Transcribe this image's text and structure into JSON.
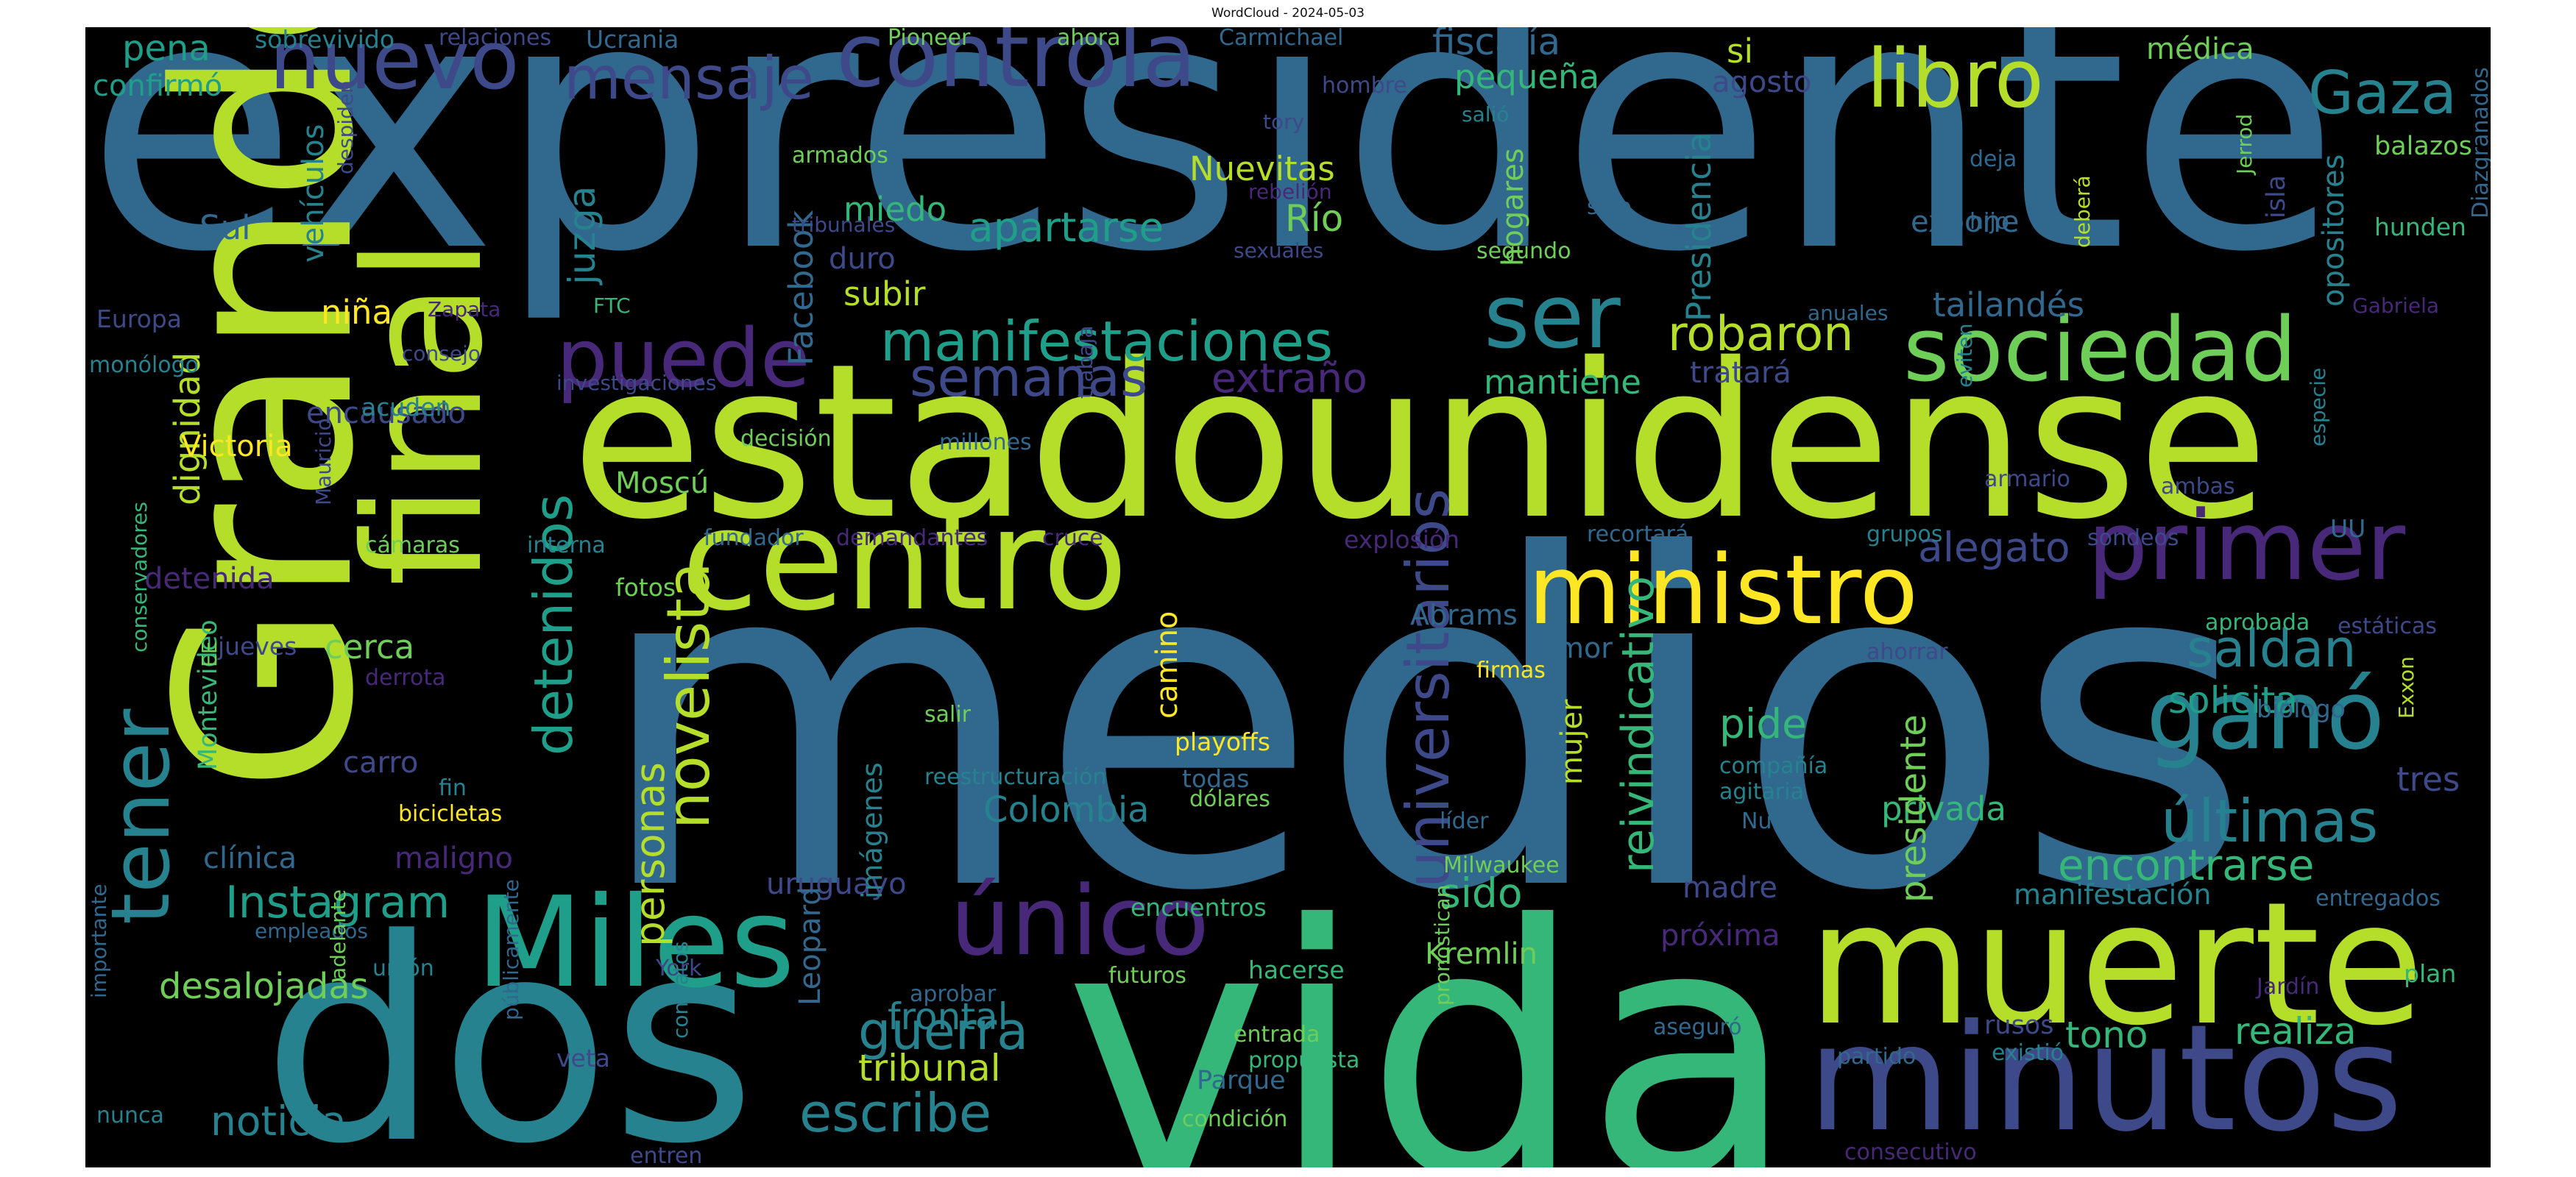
{
  "title": "WordCloud - 2024-05-03",
  "colors": {
    "background": "#000000",
    "palette": [
      "#fde725",
      "#b5de2b",
      "#6ece58",
      "#35b779",
      "#1f9e89",
      "#26828e",
      "#31688e",
      "#3e4989",
      "#482878",
      "#440154"
    ]
  },
  "words": [
    {
      "text": "expresidente",
      "color": "#31688e"
    },
    {
      "text": "medios",
      "color": "#31688e"
    },
    {
      "text": "estadounidense",
      "color": "#b5de2b"
    },
    {
      "text": "vida",
      "color": "#35b779"
    },
    {
      "text": "Grande",
      "color": "#b5de2b"
    },
    {
      "text": "dos",
      "color": "#26828e"
    },
    {
      "text": "final",
      "color": "#b5de2b"
    },
    {
      "text": "centro",
      "color": "#b5de2b"
    },
    {
      "text": "muerte",
      "color": "#b5de2b"
    },
    {
      "text": "minutos",
      "color": "#3e4989"
    },
    {
      "text": "ministro",
      "color": "#fde725"
    },
    {
      "text": "controla",
      "color": "#3e4989"
    },
    {
      "text": "nuevo",
      "color": "#3e4989"
    },
    {
      "text": "libro",
      "color": "#b5de2b"
    },
    {
      "text": "sociedad",
      "color": "#6ece58"
    },
    {
      "text": "primer",
      "color": "#482878"
    },
    {
      "text": "Miles",
      "color": "#1f9e89"
    },
    {
      "text": "único",
      "color": "#482878"
    },
    {
      "text": "ganó",
      "color": "#26828e"
    },
    {
      "text": "tener",
      "color": "#26828e"
    },
    {
      "text": "puede",
      "color": "#482878"
    },
    {
      "text": "ser",
      "color": "#26828e"
    },
    {
      "text": "mensaje",
      "color": "#3e4989"
    },
    {
      "text": "manifestaciones",
      "color": "#1f9e89"
    },
    {
      "text": "Gaza",
      "color": "#26828e"
    },
    {
      "text": "últimas",
      "color": "#26828e"
    },
    {
      "text": "universitarios",
      "color": "#3e4989"
    },
    {
      "text": "novelista",
      "color": "#b5de2b"
    },
    {
      "text": "detenidos",
      "color": "#1f9e89"
    },
    {
      "text": "saldan",
      "color": "#26828e"
    },
    {
      "text": "reivindicativo",
      "color": "#35b779"
    },
    {
      "text": "escribe",
      "color": "#26828e"
    },
    {
      "text": "Instagram",
      "color": "#1f9e89"
    },
    {
      "text": "guerra",
      "color": "#26828e"
    },
    {
      "text": "personas",
      "color": "#b5de2b"
    },
    {
      "text": "semanas",
      "color": "#3e4989"
    },
    {
      "text": "encontrarse",
      "color": "#35b779"
    },
    {
      "text": "robaron",
      "color": "#b5de2b"
    },
    {
      "text": "extraño",
      "color": "#482878"
    },
    {
      "text": "pide",
      "color": "#35b779"
    },
    {
      "text": "sido",
      "color": "#35b779"
    },
    {
      "text": "desalojadas",
      "color": "#6ece58"
    },
    {
      "text": "noticia",
      "color": "#26828e"
    },
    {
      "text": "tribunal",
      "color": "#b5de2b"
    },
    {
      "text": "frontal",
      "color": "#26828e"
    },
    {
      "text": "realiza",
      "color": "#35b779"
    },
    {
      "text": "tono",
      "color": "#35b779"
    },
    {
      "text": "dignidad",
      "color": "#b5de2b"
    },
    {
      "text": "alegato",
      "color": "#3e4989"
    },
    {
      "text": "solicita",
      "color": "#1f9e89"
    },
    {
      "text": "apartarse",
      "color": "#1f9e89"
    },
    {
      "text": "privada",
      "color": "#35b779"
    },
    {
      "text": "Colombia",
      "color": "#26828e"
    },
    {
      "text": "Presidencia",
      "color": "#26828e"
    },
    {
      "text": "presidente",
      "color": "#6ece58"
    },
    {
      "text": "fiscalía",
      "color": "#31688e"
    },
    {
      "text": "pequeña",
      "color": "#35b779"
    },
    {
      "text": "mantiene",
      "color": "#35b779"
    },
    {
      "text": "tailandés",
      "color": "#31688e"
    },
    {
      "text": "tratará",
      "color": "#3e4989"
    },
    {
      "text": "Facebook",
      "color": "#31688e"
    },
    {
      "text": "juzga",
      "color": "#26828e"
    },
    {
      "text": "Nuevitas",
      "color": "#b5de2b"
    },
    {
      "text": "Río",
      "color": "#6ece58"
    },
    {
      "text": "duro",
      "color": "#3e4989"
    },
    {
      "text": "subir",
      "color": "#b5de2b"
    },
    {
      "text": "miedo",
      "color": "#35b779"
    },
    {
      "text": "hogares",
      "color": "#6ece58"
    },
    {
      "text": "opositores",
      "color": "#26828e"
    },
    {
      "text": "médica",
      "color": "#6ece58"
    },
    {
      "text": "si",
      "color": "#b5de2b"
    },
    {
      "text": "agosto",
      "color": "#3e4989"
    },
    {
      "text": "pena",
      "color": "#1f9e89"
    },
    {
      "text": "confirmó",
      "color": "#1f9e89"
    },
    {
      "text": "niña",
      "color": "#fde725"
    },
    {
      "text": "Victoria",
      "color": "#fde725"
    },
    {
      "text": "encausado",
      "color": "#3e4989"
    },
    {
      "text": "Moscú",
      "color": "#6ece58"
    },
    {
      "text": "detenida",
      "color": "#482878"
    },
    {
      "text": "cerca",
      "color": "#6ece58"
    },
    {
      "text": "carro",
      "color": "#3e4989"
    },
    {
      "text": "clínica",
      "color": "#31688e"
    },
    {
      "text": "maligno",
      "color": "#482878"
    },
    {
      "text": "madre",
      "color": "#3e4989"
    },
    {
      "text": "próxima",
      "color": "#482878"
    },
    {
      "text": "manifestación",
      "color": "#26828e"
    },
    {
      "text": "Parque",
      "color": "#31688e"
    },
    {
      "text": "uruguayo",
      "color": "#3e4989"
    },
    {
      "text": "Leopard",
      "color": "#31688e"
    },
    {
      "text": "imágenes",
      "color": "#26828e"
    },
    {
      "text": "camino",
      "color": "#fde725"
    },
    {
      "text": "mujer",
      "color": "#b5de2b"
    },
    {
      "text": "tumor",
      "color": "#31688e"
    },
    {
      "text": "Abrams",
      "color": "#31688e"
    },
    {
      "text": "Kremlin",
      "color": "#6ece58"
    },
    {
      "text": "expone",
      "color": "#31688e"
    },
    {
      "text": "isla",
      "color": "#3e4989"
    },
    {
      "text": "tres",
      "color": "#3e4989"
    },
    {
      "text": "Sul",
      "color": "#31688e"
    },
    {
      "text": "vehículos",
      "color": "#26828e"
    },
    {
      "text": "Montevideo",
      "color": "#35b779"
    },
    {
      "text": "rusos",
      "color": "#3e4989"
    },
    {
      "text": "grupos",
      "color": "#26828e"
    },
    {
      "text": "sobrevivido",
      "color": "#26828e"
    },
    {
      "text": "relaciones",
      "color": "#3e4989"
    },
    {
      "text": "Ucrania",
      "color": "#31688e"
    },
    {
      "text": "Pioneer",
      "color": "#6ece58"
    },
    {
      "text": "ahora",
      "color": "#6ece58"
    },
    {
      "text": "Carmichael",
      "color": "#31688e"
    },
    {
      "text": "despiden",
      "color": "#3e4989"
    },
    {
      "text": "armados",
      "color": "#6ece58"
    },
    {
      "text": "tribunales",
      "color": "#3e4989"
    },
    {
      "text": "rebelión",
      "color": "#482878"
    },
    {
      "text": "sexuales",
      "color": "#3e4989"
    },
    {
      "text": "tory",
      "color": "#3e4989"
    },
    {
      "text": "hombre",
      "color": "#3e4989"
    },
    {
      "text": "salió",
      "color": "#26828e"
    },
    {
      "text": "segundo",
      "color": "#6ece58"
    },
    {
      "text": "solo",
      "color": "#31688e"
    },
    {
      "text": "deja",
      "color": "#31688e"
    },
    {
      "text": "hijo",
      "color": "#31688e"
    },
    {
      "text": "deberá",
      "color": "#b5de2b"
    },
    {
      "text": "Jerrod",
      "color": "#6ece58"
    },
    {
      "text": "balazos",
      "color": "#6ece58"
    },
    {
      "text": "hunden",
      "color": "#35b779"
    },
    {
      "text": "Diazgranados",
      "color": "#31688e"
    },
    {
      "text": "Gabriela",
      "color": "#482878"
    },
    {
      "text": "anuales",
      "color": "#31688e"
    },
    {
      "text": "Europa",
      "color": "#3e4989"
    },
    {
      "text": "monólogo",
      "color": "#26828e"
    },
    {
      "text": "Zapata",
      "color": "#482878"
    },
    {
      "text": "FTC",
      "color": "#35b779"
    },
    {
      "text": "consejo",
      "color": "#3e4989"
    },
    {
      "text": "investigaciones",
      "color": "#3e4989"
    },
    {
      "text": "acuden",
      "color": "#26828e"
    },
    {
      "text": "decisión",
      "color": "#6ece58"
    },
    {
      "text": "millones",
      "color": "#31688e"
    },
    {
      "text": "trabaja",
      "color": "#3e4989"
    },
    {
      "text": "eviten",
      "color": "#26828e"
    },
    {
      "text": "armario",
      "color": "#3e4989"
    },
    {
      "text": "ambas",
      "color": "#3e4989"
    },
    {
      "text": "especie",
      "color": "#26828e"
    },
    {
      "text": "cámaras",
      "color": "#6ece58"
    },
    {
      "text": "Mauricio",
      "color": "#3e4989"
    },
    {
      "text": "interna",
      "color": "#26828e"
    },
    {
      "text": "fundador",
      "color": "#31688e"
    },
    {
      "text": "demandantes",
      "color": "#482878"
    },
    {
      "text": "cruce",
      "color": "#482878"
    },
    {
      "text": "explosión",
      "color": "#482878"
    },
    {
      "text": "recortará",
      "color": "#31688e"
    },
    {
      "text": "sondeos",
      "color": "#3e4989"
    },
    {
      "text": "UU",
      "color": "#31688e"
    },
    {
      "text": "fotos",
      "color": "#6ece58"
    },
    {
      "text": "jueves",
      "color": "#3e4989"
    },
    {
      "text": "derrota",
      "color": "#482878"
    },
    {
      "text": "EE",
      "color": "#6ece58"
    },
    {
      "text": "conservadores",
      "color": "#35b779"
    },
    {
      "text": "salir",
      "color": "#6ece58"
    },
    {
      "text": "playoffs",
      "color": "#fde725"
    },
    {
      "text": "firmas",
      "color": "#fde725"
    },
    {
      "text": "ahorrar",
      "color": "#3e4989"
    },
    {
      "text": "aprobada",
      "color": "#35b779"
    },
    {
      "text": "estáticas",
      "color": "#3e4989"
    },
    {
      "text": "biólogo",
      "color": "#31688e"
    },
    {
      "text": "Exxon",
      "color": "#b5de2b"
    },
    {
      "text": "reestructuración",
      "color": "#26828e"
    },
    {
      "text": "todas",
      "color": "#31688e"
    },
    {
      "text": "dólares",
      "color": "#6ece58"
    },
    {
      "text": "compañía",
      "color": "#26828e"
    },
    {
      "text": "agitaria",
      "color": "#26828e"
    },
    {
      "text": "Nueva",
      "color": "#31688e"
    },
    {
      "text": "líder",
      "color": "#31688e"
    },
    {
      "text": "fin",
      "color": "#26828e"
    },
    {
      "text": "bicicletas",
      "color": "#fde725"
    },
    {
      "text": "empleados",
      "color": "#31688e"
    },
    {
      "text": "encuentros",
      "color": "#35b779"
    },
    {
      "text": "Milwaukee",
      "color": "#6ece58"
    },
    {
      "text": "entregados",
      "color": "#31688e"
    },
    {
      "text": "unión",
      "color": "#26828e"
    },
    {
      "text": "York",
      "color": "#3e4989"
    },
    {
      "text": "aprobar",
      "color": "#31688e"
    },
    {
      "text": "futuros",
      "color": "#6ece58"
    },
    {
      "text": "hacerse",
      "color": "#35b779"
    },
    {
      "text": "aseguró",
      "color": "#31688e"
    },
    {
      "text": "Jardín",
      "color": "#482878"
    },
    {
      "text": "plan",
      "color": "#35b779"
    },
    {
      "text": "importante",
      "color": "#31688e"
    },
    {
      "text": "adelante",
      "color": "#6ece58"
    },
    {
      "text": "nunca",
      "color": "#26828e"
    },
    {
      "text": "públicamente",
      "color": "#31688e"
    },
    {
      "text": "veta",
      "color": "#3e4989"
    },
    {
      "text": "contratos",
      "color": "#26828e"
    },
    {
      "text": "entren",
      "color": "#3e4989"
    },
    {
      "text": "entrada",
      "color": "#6ece58"
    },
    {
      "text": "propuesta",
      "color": "#35b779"
    },
    {
      "text": "condición",
      "color": "#6ece58"
    },
    {
      "text": "pronostican",
      "color": "#6ece58"
    },
    {
      "text": "partido",
      "color": "#31688e"
    },
    {
      "text": "existió",
      "color": "#26828e"
    },
    {
      "text": "consecutivo",
      "color": "#482878"
    }
  ]
}
